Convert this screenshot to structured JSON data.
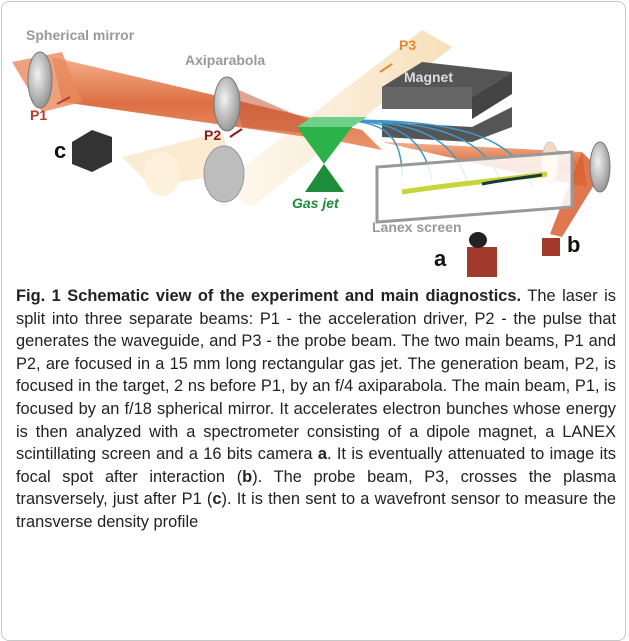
{
  "figure": {
    "labels": {
      "spherical_mirror": "Spherical mirror",
      "axiparabola": "Axiparabola",
      "p3": "P3",
      "magnet": "Magnet",
      "p1": "P1",
      "p2": "P2",
      "c": "c",
      "gas_jet": "Gas jet",
      "lanex": "Lanex screen",
      "a": "a",
      "b": "b"
    }
  },
  "caption": {
    "title": "Fig. 1 Schematic view of the experiment and main diagnostics.",
    "segments": [
      " The laser is split into three separate beams: P1 - the acceleration driver, P2 - the pulse that generates the waveguide, and P3 - the probe beam. The two main beams, P1 and P2, are focused in a 15 mm long rectangular gas jet. The generation beam, P2, is focused in the target, 2 ns before P1, by an f/4 axiparabola. The main beam, P1, is focused by an f/18 spherical mirror. It accelerates electron bunches whose energy is then analyzed with a spectrometer consisting of a dipole magnet, a LANEX scintillating screen and a 16 bits camera ",
      "a",
      ". It is eventually attenuated to image its focal spot after interaction (",
      "b",
      "). The probe beam, P3, crosses the plasma transversely, just after P1 (",
      "c",
      "). It is then sent to a wavefront sensor to measure the transverse density profile"
    ]
  }
}
